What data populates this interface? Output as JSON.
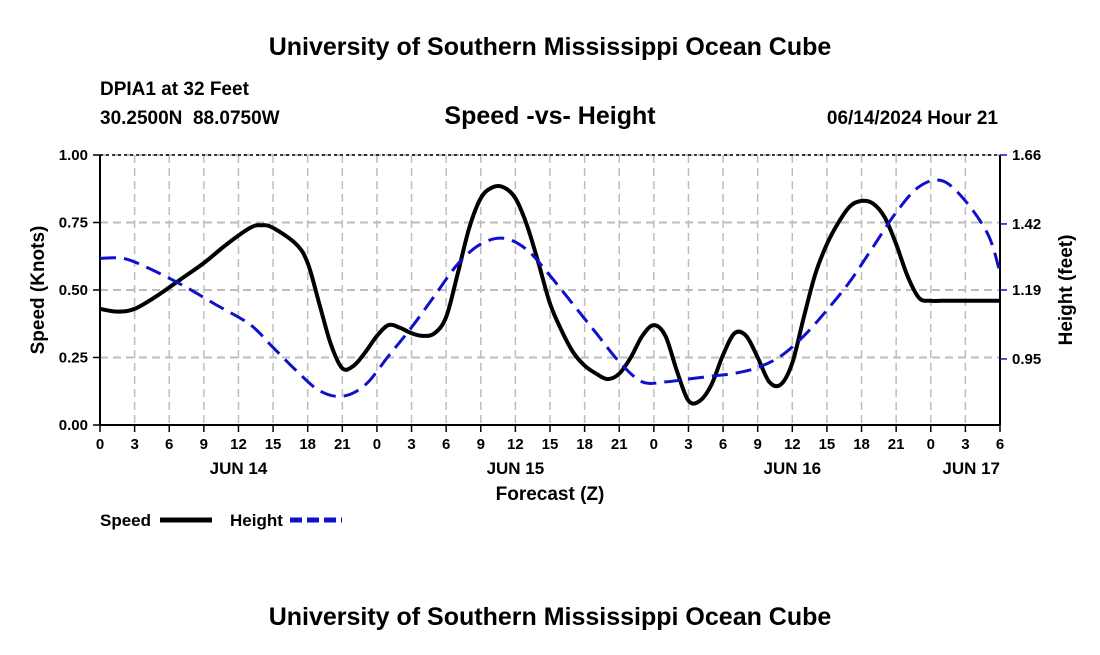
{
  "header": {
    "title": "University of Southern Mississippi Ocean Cube",
    "station": "DPIA1 at 32 Feet",
    "coords": "30.2500N  88.0750W",
    "datetime": "06/14/2024 Hour 21"
  },
  "footer": {
    "title": "University of Southern Mississippi Ocean Cube"
  },
  "colors": {
    "speed": "#000000",
    "height": "#1010cc",
    "grid": "#bdbdbd"
  },
  "chart_data": {
    "type": "line",
    "title": "Speed -vs- Height",
    "xlabel": "Forecast (Z)",
    "ylabel": "Speed (Knots)",
    "y2label": "Height (feet)",
    "xlim": [
      0,
      78
    ],
    "ylim": [
      0,
      1.0
    ],
    "y2lim": [
      0.72,
      1.66
    ],
    "yticks": [
      {
        "v": 0,
        "label": "0.00"
      },
      {
        "v": 0.25,
        "label": "0.25"
      },
      {
        "v": 0.5,
        "label": "0.50"
      },
      {
        "v": 0.75,
        "label": "0.75"
      },
      {
        "v": 1.0,
        "label": "1.00"
      }
    ],
    "y2ticks": [
      {
        "v": 0.95,
        "label": "0.95"
      },
      {
        "v": 1.19,
        "label": "1.19"
      },
      {
        "v": 1.42,
        "label": "1.42"
      },
      {
        "v": 1.66,
        "label": "1.66"
      }
    ],
    "xticks": [
      {
        "h": 0,
        "label": "0"
      },
      {
        "h": 3,
        "label": "3"
      },
      {
        "h": 6,
        "label": "6"
      },
      {
        "h": 9,
        "label": "9"
      },
      {
        "h": 12,
        "label": "12"
      },
      {
        "h": 15,
        "label": "15"
      },
      {
        "h": 18,
        "label": "18"
      },
      {
        "h": 21,
        "label": "21"
      },
      {
        "h": 24,
        "label": "0"
      },
      {
        "h": 27,
        "label": "3"
      },
      {
        "h": 30,
        "label": "6"
      },
      {
        "h": 33,
        "label": "9"
      },
      {
        "h": 36,
        "label": "12"
      },
      {
        "h": 39,
        "label": "15"
      },
      {
        "h": 42,
        "label": "18"
      },
      {
        "h": 45,
        "label": "21"
      },
      {
        "h": 48,
        "label": "0"
      },
      {
        "h": 51,
        "label": "3"
      },
      {
        "h": 54,
        "label": "6"
      },
      {
        "h": 57,
        "label": "9"
      },
      {
        "h": 60,
        "label": "12"
      },
      {
        "h": 63,
        "label": "15"
      },
      {
        "h": 66,
        "label": "18"
      },
      {
        "h": 69,
        "label": "21"
      },
      {
        "h": 72,
        "label": "0"
      },
      {
        "h": 75,
        "label": "3"
      },
      {
        "h": 78,
        "label": "6"
      }
    ],
    "date_labels": [
      {
        "h": 12,
        "label": "JUN 14"
      },
      {
        "h": 36,
        "label": "JUN 15"
      },
      {
        "h": 60,
        "label": "JUN 16"
      },
      {
        "h": 78,
        "label": "JUN 17"
      }
    ],
    "series": [
      {
        "name": "Speed",
        "axis": "left",
        "x": [
          0,
          1.5,
          3,
          5,
          7,
          9,
          11,
          13,
          14,
          15,
          17,
          18,
          19,
          20,
          21,
          22,
          23,
          24,
          25,
          26,
          27,
          28,
          29,
          30,
          31,
          32,
          33,
          34,
          35,
          36,
          37,
          38,
          39,
          40,
          41,
          42,
          43,
          44,
          45,
          46,
          47,
          48,
          49,
          50,
          51,
          52,
          53,
          54,
          55,
          56,
          57,
          58,
          59,
          60,
          61,
          62,
          63,
          64,
          65,
          66,
          67,
          68,
          69,
          70,
          71,
          72,
          73,
          74,
          75,
          76,
          77,
          78
        ],
        "values": [
          0.43,
          0.42,
          0.43,
          0.48,
          0.54,
          0.6,
          0.67,
          0.73,
          0.74,
          0.73,
          0.67,
          0.6,
          0.45,
          0.3,
          0.21,
          0.22,
          0.27,
          0.33,
          0.37,
          0.36,
          0.34,
          0.33,
          0.34,
          0.4,
          0.56,
          0.73,
          0.84,
          0.88,
          0.88,
          0.84,
          0.74,
          0.6,
          0.45,
          0.35,
          0.27,
          0.22,
          0.19,
          0.17,
          0.19,
          0.25,
          0.33,
          0.37,
          0.33,
          0.2,
          0.09,
          0.09,
          0.15,
          0.26,
          0.34,
          0.33,
          0.25,
          0.16,
          0.15,
          0.23,
          0.4,
          0.56,
          0.67,
          0.75,
          0.81,
          0.83,
          0.82,
          0.77,
          0.67,
          0.55,
          0.47,
          0.46,
          0.46,
          0.46,
          0.46,
          0.46,
          0.46,
          0.46
        ]
      },
      {
        "name": "Height",
        "axis": "right",
        "x": [
          0,
          2,
          4,
          7,
          10,
          13,
          15,
          17,
          19,
          21,
          23,
          25,
          27,
          29,
          31,
          33,
          35,
          37,
          39,
          41,
          43,
          45,
          47,
          49,
          51,
          53,
          55,
          57,
          59,
          61,
          63,
          65,
          67,
          69,
          71,
          73,
          75,
          77,
          78
        ],
        "values": [
          1.3,
          1.3,
          1.27,
          1.21,
          1.14,
          1.07,
          0.99,
          0.91,
          0.84,
          0.82,
          0.86,
          0.96,
          1.06,
          1.17,
          1.28,
          1.35,
          1.37,
          1.33,
          1.24,
          1.14,
          1.04,
          0.94,
          0.87,
          0.87,
          0.88,
          0.89,
          0.9,
          0.92,
          0.96,
          1.03,
          1.12,
          1.22,
          1.34,
          1.46,
          1.55,
          1.57,
          1.5,
          1.38,
          1.25
        ]
      }
    ],
    "legend": {
      "position": "bottom-left",
      "items": [
        {
          "label": "Speed",
          "series": "Speed"
        },
        {
          "label": "Height",
          "series": "Height"
        }
      ]
    }
  }
}
